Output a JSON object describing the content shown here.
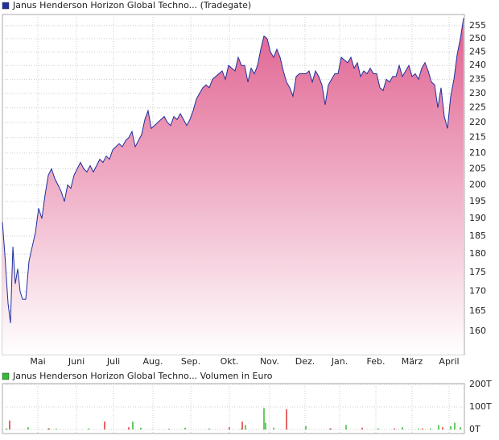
{
  "chart_data": [
    {
      "type": "area",
      "log": true,
      "grid": true,
      "series": [
        {
          "name": "Janus Henderson Horizon Global Techno... (Tradegate)",
          "color": "#1f2f9e",
          "fill": "#e0608f",
          "x": [
            1.5,
            3,
            5,
            6.5,
            8,
            9.5,
            11,
            12.5,
            14,
            16,
            18,
            20,
            22,
            24,
            26,
            28,
            30,
            32,
            34,
            36,
            38,
            40,
            42,
            44,
            46,
            48,
            50,
            52,
            54,
            56,
            58,
            60,
            62,
            64,
            66,
            68,
            70,
            72,
            74,
            76,
            78,
            80,
            82,
            84,
            86,
            88,
            90,
            92,
            94,
            96,
            98,
            100,
            102,
            104,
            106,
            108,
            110,
            112,
            114,
            116,
            118,
            120,
            122,
            124,
            126,
            128,
            130,
            132,
            134,
            136,
            138,
            140,
            142,
            144,
            146,
            148,
            150,
            152,
            154,
            156,
            158,
            160,
            162,
            164,
            166,
            168,
            170,
            172,
            174,
            176,
            178,
            180,
            182,
            184,
            186,
            188,
            190,
            192,
            194,
            196,
            198,
            200,
            202,
            204,
            206,
            208,
            210,
            212,
            214,
            216,
            218,
            220,
            222,
            224,
            226,
            228,
            230,
            232,
            234,
            236,
            238,
            240,
            242,
            244,
            246,
            248,
            250,
            252,
            254,
            256,
            258,
            260,
            262,
            264,
            266,
            268,
            270,
            272,
            274,
            276,
            278,
            280,
            282,
            284,
            286,
            288
          ],
          "values": [
            189,
            180,
            167,
            162,
            182,
            172,
            176,
            170,
            168,
            168,
            178,
            182,
            186,
            193,
            190,
            197,
            203,
            205,
            202,
            200,
            198,
            195,
            200,
            199,
            203,
            205,
            207,
            205,
            204,
            206,
            204,
            206,
            208,
            207,
            209,
            208,
            211,
            212,
            213,
            212,
            214,
            215,
            217,
            212,
            214,
            216,
            221,
            224,
            218,
            219,
            220,
            221,
            222,
            220,
            219,
            222,
            221,
            223,
            221,
            219,
            221,
            224,
            228,
            230,
            232,
            233,
            232,
            235,
            236,
            237,
            238,
            235,
            240,
            239,
            238,
            243,
            240,
            240,
            234,
            239,
            237,
            240,
            246,
            251,
            250,
            245,
            243,
            246,
            243,
            238,
            234,
            232,
            229,
            236,
            237,
            237,
            237,
            238,
            234,
            238,
            236,
            233,
            226,
            233,
            235,
            237,
            237,
            243,
            242,
            241,
            243,
            239,
            241,
            236,
            238,
            237,
            239,
            237,
            237,
            232,
            231,
            235,
            234,
            236,
            236,
            240,
            236,
            238,
            240,
            236,
            237,
            235,
            239,
            241,
            238,
            234,
            233,
            225,
            232,
            222,
            218,
            229,
            235,
            244,
            250,
            258
          ]
        }
      ],
      "xlim": [
        1.5,
        288.5
      ],
      "xticks": [
        {
          "value": 23.5,
          "label": "Mai"
        },
        {
          "value": 47.5,
          "label": "Juni"
        },
        {
          "value": 70.5,
          "label": "Juli"
        },
        {
          "value": 95,
          "label": "Aug."
        },
        {
          "value": 118.5,
          "label": "Sep."
        },
        {
          "value": 142.5,
          "label": "Okt."
        },
        {
          "value": 167.5,
          "label": "Nov."
        },
        {
          "value": 189.5,
          "label": "Dez."
        },
        {
          "value": 211,
          "label": "Jan."
        },
        {
          "value": 233.5,
          "label": "Feb."
        },
        {
          "value": 256,
          "label": "März"
        },
        {
          "value": 279,
          "label": "April"
        }
      ],
      "ylim": [
        154.4,
        259.4
      ],
      "yticks": [
        160,
        165,
        170,
        175,
        180,
        185,
        190,
        195,
        200,
        205,
        210,
        215,
        220,
        225,
        230,
        235,
        240,
        245,
        250,
        255
      ]
    },
    {
      "type": "bar",
      "grid": true,
      "series": [
        {
          "name": "Janus Henderson Horizon Global Techno... Volumen in Euro",
          "color": "#33bb33",
          "x": [
            4,
            17.5,
            30,
            35,
            55,
            82.5,
            87.5,
            105,
            115,
            130,
            150,
            152.5,
            164,
            165,
            170,
            190,
            205,
            215,
            235,
            250,
            260,
            267.5,
            272.5,
            280,
            282.5,
            286
          ],
          "values": [
            5,
            10,
            5,
            4,
            5,
            35,
            8,
            4,
            8,
            5,
            5,
            20,
            95,
            30,
            8,
            15,
            5,
            20,
            5,
            10,
            5,
            5,
            20,
            15,
            30,
            10
          ]
        },
        {
          "color": "#dd3333",
          "x": [
            6,
            30.5,
            65,
            80,
            142.5,
            150.5,
            178,
            205.5,
            225,
            245,
            262.5,
            275
          ],
          "values": [
            40,
            5,
            35,
            10,
            10,
            35,
            90,
            5,
            8,
            5,
            5,
            10
          ]
        }
      ],
      "xlim": [
        1.5,
        288.5
      ],
      "ylim": [
        0,
        200
      ],
      "yticks": [
        {
          "value": 0,
          "label": "0T"
        },
        {
          "value": 100,
          "label": "100T"
        },
        {
          "value": 200,
          "label": "200T"
        }
      ]
    }
  ]
}
